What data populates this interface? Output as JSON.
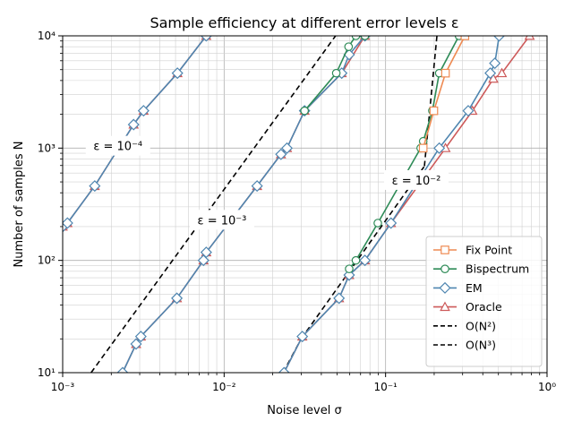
{
  "chart_data": {
    "type": "line",
    "title": "Sample efficiency at different error levels ε",
    "xlabel": "Noise level σ",
    "ylabel": "Number of samples N",
    "xscale": "log",
    "yscale": "log",
    "xlim": [
      0.001,
      1
    ],
    "ylim": [
      10,
      10000
    ],
    "x_ticks": [
      {
        "value": 0.001,
        "label": "10⁻³"
      },
      {
        "value": 0.01,
        "label": "10⁻²"
      },
      {
        "value": 0.1,
        "label": "10⁻¹"
      },
      {
        "value": 1,
        "label": "10⁰"
      }
    ],
    "y_ticks": [
      {
        "value": 10,
        "label": "10¹"
      },
      {
        "value": 100,
        "label": "10²"
      },
      {
        "value": 1000,
        "label": "10³"
      },
      {
        "value": 10000,
        "label": "10⁴"
      }
    ],
    "grid": true,
    "legend_position": "bottom-right",
    "legend": [
      {
        "label": "Fix Point",
        "color": "#ee8a52",
        "marker": "square"
      },
      {
        "label": "Bispectrum",
        "color": "#2e8b57",
        "marker": "circle"
      },
      {
        "label": "EM",
        "color": "#4f86b0",
        "marker": "diamond"
      },
      {
        "label": "Oracle",
        "color": "#cd5a5a",
        "marker": "triangle"
      },
      {
        "label": "O(N²)",
        "color": "#000000",
        "marker": "dashed"
      },
      {
        "label": "O(N³)",
        "color": "#000000",
        "marker": "dashed"
      }
    ],
    "annotations": [
      {
        "text": "ε = 10⁻⁴",
        "x": 0.0022,
        "y": 1050
      },
      {
        "text": "ε = 10⁻³",
        "x": 0.0097,
        "y": 230
      },
      {
        "text": "ε = 10⁻²",
        "x": 0.155,
        "y": 520
      }
    ],
    "series": [
      {
        "group": "ε = 10⁻⁴",
        "method": "Oracle",
        "color": "#cd5a5a",
        "marker": "triangle",
        "x": [
          0.001,
          0.00107,
          0.00158,
          0.00275,
          0.00317,
          0.00514,
          0.00775
        ],
        "y": [
          200,
          215,
          460,
          1620,
          2150,
          4650,
          10000
        ]
      },
      {
        "group": "ε = 10⁻⁴",
        "method": "EM",
        "color": "#4f86b0",
        "marker": "diamond",
        "x": [
          0.001,
          0.00107,
          0.00158,
          0.00275,
          0.00317,
          0.00514,
          0.00775
        ],
        "y": [
          200,
          215,
          460,
          1620,
          2150,
          4650,
          10000
        ]
      },
      {
        "group": "ε = 10⁻³",
        "method": "Oracle",
        "color": "#cd5a5a",
        "marker": "triangle",
        "x": [
          0.00235,
          0.00285,
          0.00305,
          0.0051,
          0.00745,
          0.00775,
          0.016,
          0.0225,
          0.0245,
          0.0315,
          0.0535,
          0.0745
        ],
        "y": [
          10,
          18,
          21,
          46,
          100,
          118,
          460,
          880,
          1000,
          2150,
          4650,
          10000
        ]
      },
      {
        "group": "ε = 10⁻³",
        "method": "EM",
        "color": "#4f86b0",
        "marker": "diamond",
        "x": [
          0.00235,
          0.00285,
          0.00305,
          0.0051,
          0.00745,
          0.00775,
          0.016,
          0.0225,
          0.0245,
          0.0315,
          0.0535,
          0.0595,
          0.0745
        ],
        "y": [
          10,
          18,
          21,
          46,
          100,
          118,
          460,
          880,
          1000,
          2150,
          4650,
          6800,
          10000
        ]
      },
      {
        "group": "ε = 10⁻³",
        "method": "Bispectrum",
        "color": "#2e8b57",
        "marker": "circle",
        "x": [
          0.0315,
          0.0495,
          0.059,
          0.0655,
          0.0745
        ],
        "y": [
          2150,
          4650,
          8000,
          10000,
          10000
        ]
      },
      {
        "group": "ε = 10⁻²",
        "method": "Oracle",
        "color": "#cd5a5a",
        "marker": "triangle",
        "x": [
          0.0235,
          0.0305,
          0.0515,
          0.0595,
          0.0745,
          0.108,
          0.235,
          0.345,
          0.465,
          0.525,
          0.78
        ],
        "y": [
          10,
          21,
          46,
          74,
          100,
          215,
          1000,
          2150,
          4150,
          4650,
          10000
        ]
      },
      {
        "group": "ε = 10⁻²",
        "method": "EM",
        "color": "#4f86b0",
        "marker": "diamond",
        "x": [
          0.0235,
          0.0305,
          0.0515,
          0.0595,
          0.0745,
          0.108,
          0.215,
          0.325,
          0.445,
          0.475,
          0.505
        ],
        "y": [
          10,
          21,
          46,
          74,
          100,
          215,
          1000,
          2150,
          4650,
          5700,
          10000
        ]
      },
      {
        "group": "ε = 10⁻²",
        "method": "Bispectrum",
        "color": "#2e8b57",
        "marker": "circle",
        "x": [
          0.0595,
          0.0655,
          0.0895,
          0.165,
          0.171,
          0.195,
          0.215,
          0.285
        ],
        "y": [
          84,
          100,
          215,
          1000,
          1150,
          2150,
          4650,
          10000
        ]
      },
      {
        "group": "ε = 10⁻²",
        "method": "Fix Point",
        "color": "#ee8a52",
        "marker": "square",
        "x": [
          0.171,
          0.199,
          0.235,
          0.31
        ],
        "y": [
          1000,
          2150,
          4650,
          10000
        ]
      }
    ],
    "reference_lines": [
      {
        "label": "O(N³)",
        "x": [
          0.0015,
          0.049
        ],
        "y": [
          10,
          10000
        ]
      },
      {
        "label": "O(N²)",
        "x": [
          0.0232,
          0.03
        ],
        "y": [
          10,
          20
        ]
      },
      {
        "label": "O(N³)",
        "x": [
          0.03,
          0.174
        ],
        "y": [
          20,
          690
        ]
      },
      {
        "label": "O(N²)",
        "x": [
          0.174,
          0.208
        ],
        "y": [
          690,
          10000
        ]
      }
    ]
  }
}
